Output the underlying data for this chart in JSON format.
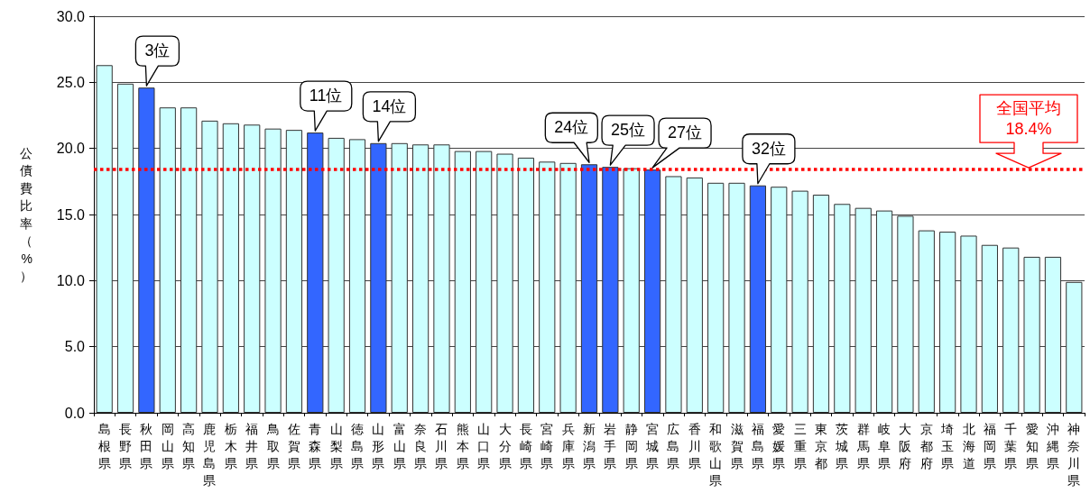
{
  "chart_data": {
    "type": "bar",
    "ylabel": "公債費比率（%）",
    "categories": [
      "島根県",
      "長野県",
      "秋田県",
      "岡山県",
      "高知県",
      "鹿児島県",
      "栃木県",
      "福井県",
      "鳥取県",
      "佐賀県",
      "青森県",
      "山梨県",
      "徳島県",
      "山形県",
      "富山県",
      "奈良県",
      "石川県",
      "熊本県",
      "山口県",
      "大分県",
      "長崎県",
      "宮崎県",
      "兵庫県",
      "新潟県",
      "岩手県",
      "静岡県",
      "宮城県",
      "広島県",
      "香川県",
      "和歌山県",
      "滋賀県",
      "福島県",
      "愛媛県",
      "三重県",
      "東京都",
      "茨城県",
      "群馬県",
      "岐阜県",
      "大阪府",
      "京都府",
      "埼玉県",
      "北海道",
      "福岡県",
      "千葉県",
      "愛知県",
      "沖縄県",
      "神奈川県"
    ],
    "values": [
      26.3,
      24.9,
      24.6,
      23.1,
      23.1,
      22.1,
      21.9,
      21.8,
      21.5,
      21.4,
      21.2,
      20.8,
      20.7,
      20.4,
      20.4,
      20.3,
      20.3,
      19.8,
      19.8,
      19.6,
      19.3,
      19.0,
      18.9,
      18.8,
      18.6,
      18.5,
      18.4,
      17.9,
      17.8,
      17.4,
      17.4,
      17.2,
      17.1,
      16.8,
      16.5,
      15.8,
      15.5,
      15.3,
      14.9,
      13.8,
      13.7,
      13.4,
      12.7,
      12.5,
      11.8,
      11.8,
      9.9
    ],
    "colors": [
      "#ccffff",
      "#ccffff",
      "#3366ff",
      "#ccffff",
      "#ccffff",
      "#ccffff",
      "#ccffff",
      "#ccffff",
      "#ccffff",
      "#ccffff",
      "#3366ff",
      "#ccffff",
      "#ccffff",
      "#3366ff",
      "#ccffff",
      "#ccffff",
      "#ccffff",
      "#ccffff",
      "#ccffff",
      "#ccffff",
      "#ccffff",
      "#ccffff",
      "#ccffff",
      "#3366ff",
      "#3366ff",
      "#ccffff",
      "#3366ff",
      "#ccffff",
      "#ccffff",
      "#ccffff",
      "#ccffff",
      "#3366ff",
      "#ccffff",
      "#ccffff",
      "#ccffff",
      "#ccffff",
      "#ccffff",
      "#ccffff",
      "#ccffff",
      "#ccffff",
      "#ccffff",
      "#ccffff",
      "#ccffff",
      "#ccffff",
      "#ccffff",
      "#ccffff",
      "#ccffff"
    ],
    "ylim": [
      0,
      30
    ],
    "yticks": [
      {
        "value": 0,
        "label": "0.0"
      },
      {
        "value": 5,
        "label": "5.0"
      },
      {
        "value": 10,
        "label": "10.0"
      },
      {
        "value": 15,
        "label": "15.0"
      },
      {
        "value": 20,
        "label": "20.0"
      },
      {
        "value": 25,
        "label": "25.0"
      },
      {
        "value": 30,
        "label": "30.0"
      }
    ],
    "grid": "y",
    "ref_lines": [
      {
        "axis": "y",
        "value": 18.4,
        "label": "全国平均\n18.4%",
        "color": "#ff0000",
        "line_style": "dotted"
      }
    ],
    "annotations": [
      {
        "text": "3位",
        "x": "秋田県",
        "y": 24.6
      },
      {
        "text": "11位",
        "x": "青森県",
        "y": 21.2
      },
      {
        "text": "14位",
        "x": "山形県",
        "y": 20.4
      },
      {
        "text": "24位",
        "x": "新潟県",
        "y": 18.8
      },
      {
        "text": "25位",
        "x": "岩手県",
        "y": 18.6
      },
      {
        "text": "27位",
        "x": "宮城県",
        "y": 18.4
      },
      {
        "text": "32位",
        "x": "福島県",
        "y": 17.2
      }
    ]
  }
}
